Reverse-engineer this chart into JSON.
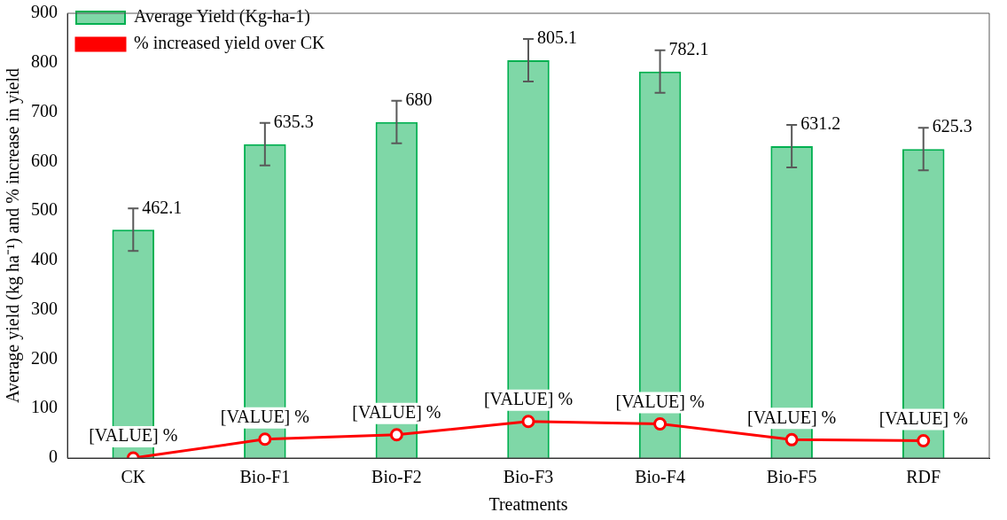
{
  "chart_data": {
    "type": "bar",
    "xlabel": "Treatments",
    "ylabel": "Average yield (kg ha⁻¹) and % increase in yield",
    "categories": [
      "CK",
      "Bio-F1",
      "Bio-F2",
      "Bio-F3",
      "Bio-F4",
      "Bio-F5",
      "RDF"
    ],
    "series": [
      {
        "name": "Average Yield (Kg-ha-1)",
        "color": "#00b050",
        "values": [
          462.1,
          635.3,
          680,
          805.1,
          782.1,
          631.2,
          625.3
        ],
        "errors": [
          43,
          43,
          43,
          43,
          43,
          43,
          43
        ],
        "data_labels": true
      },
      {
        "name": "% increased yield over CK",
        "type": "line",
        "color": "#ff0000",
        "marker": "circle",
        "values": [
          0,
          38,
          47,
          74,
          69,
          37,
          35
        ],
        "value_labels": [
          "[VALUE] %",
          "[VALUE] %",
          "[VALUE] %",
          "[VALUE] %",
          "[VALUE] %",
          "[VALUE] %",
          "[VALUE] %"
        ]
      }
    ],
    "ylim": [
      0,
      900
    ],
    "yticks": [
      0,
      100,
      200,
      300,
      400,
      500,
      600,
      700,
      800,
      900
    ],
    "grid": false,
    "legend": "top left"
  }
}
